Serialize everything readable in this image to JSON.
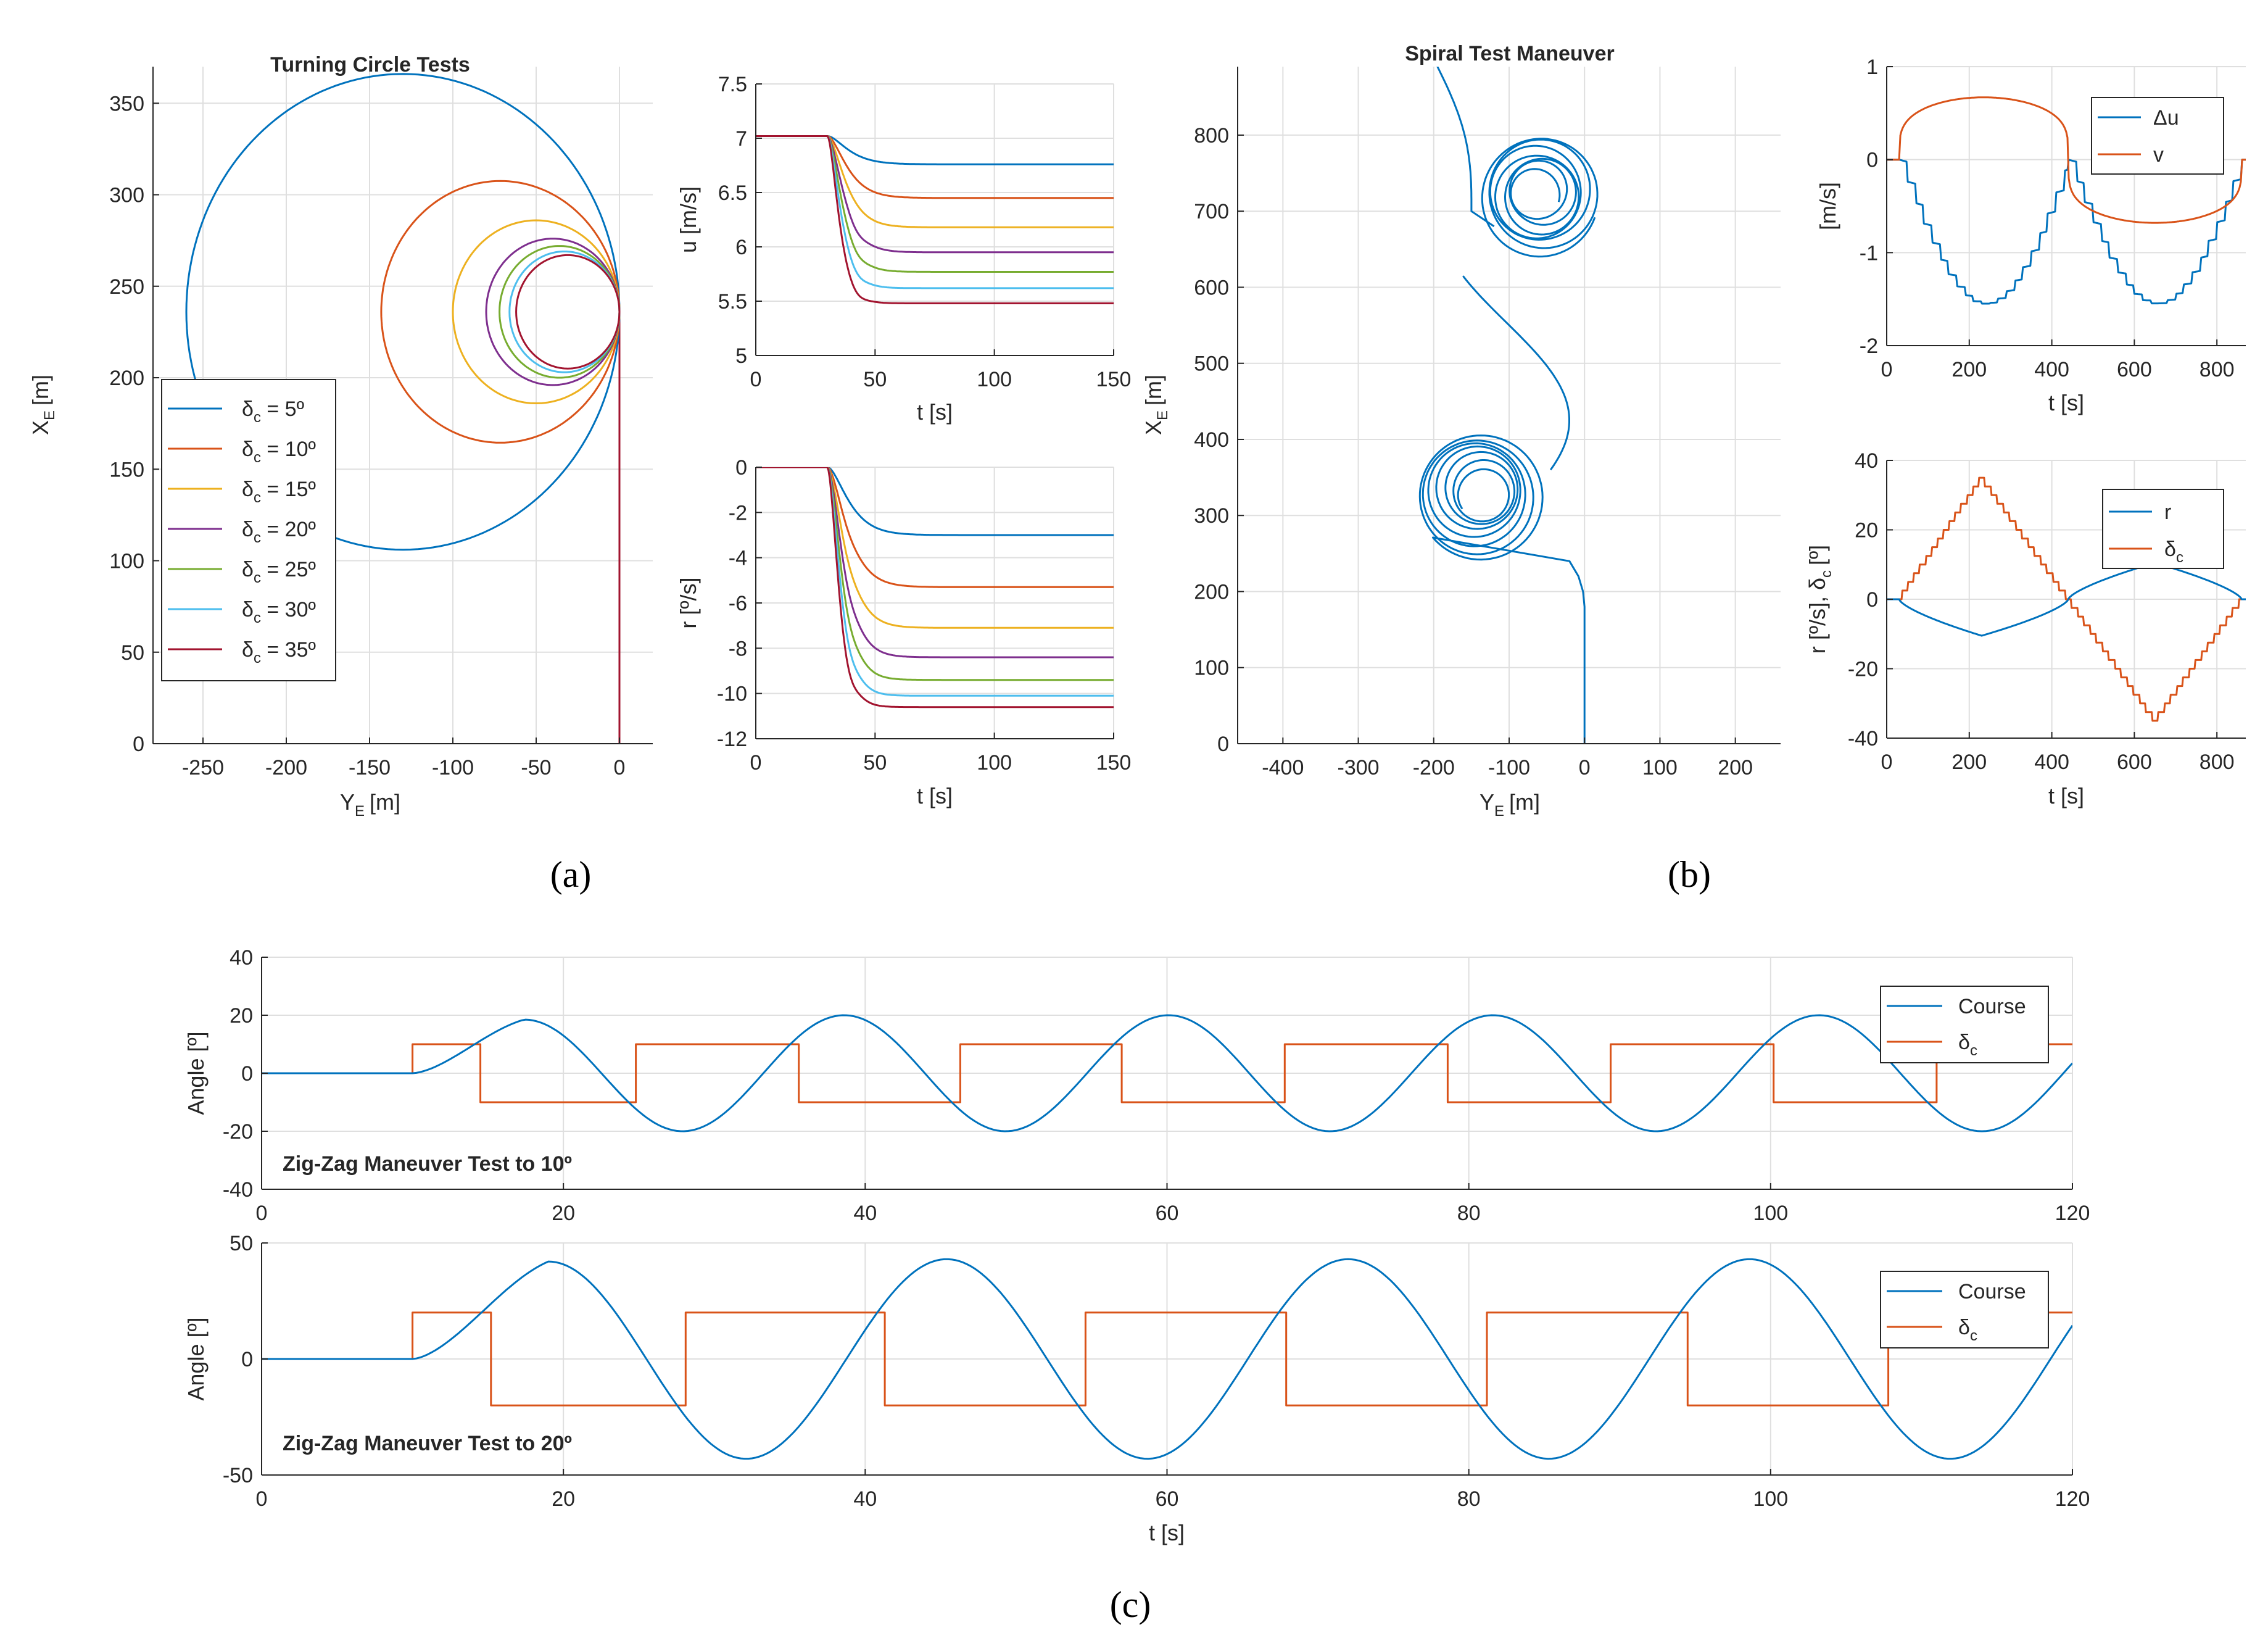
{
  "colors": {
    "blue": "#0072BD",
    "orange": "#D95319",
    "yellow": "#EDB120",
    "purple": "#7E2F8E",
    "green": "#77AC30",
    "cyan": "#4DBEEE",
    "darkred": "#A2142F"
  },
  "captions": {
    "a": "(a)",
    "b": "(b)",
    "c": "(c)"
  },
  "chart_data": [
    {
      "id": "turning",
      "type": "line",
      "title": "Turning Circle Tests",
      "xlabel": "Y",
      "xlabel_sub": "E",
      "xlabel_unit": "[m]",
      "ylabel": "X",
      "ylabel_sub": "E",
      "ylabel_unit": "[m]",
      "xlim": [
        -280,
        20
      ],
      "ylim": [
        0,
        370
      ],
      "xticks": [
        "-250",
        "-200",
        "-150",
        "-100",
        "-50",
        "0"
      ],
      "xtick_values": [
        -250,
        -200,
        -150,
        -100,
        -50,
        0
      ],
      "yticks": [
        "0",
        "50",
        "100",
        "150",
        "200",
        "250",
        "300",
        "350"
      ],
      "ytick_values": [
        0,
        50,
        100,
        150,
        200,
        250,
        300,
        350
      ],
      "series": [
        {
          "name": "δc = 5º",
          "label_main": "δ",
          "label_sub": "c",
          "label_rest": " = 5º",
          "diameter": 260,
          "color": "blue"
        },
        {
          "name": "δc = 10º",
          "label_main": "δ",
          "label_sub": "c",
          "label_rest": " = 10º",
          "diameter": 143,
          "color": "orange"
        },
        {
          "name": "δc = 15º",
          "label_main": "δ",
          "label_sub": "c",
          "label_rest": " = 15º",
          "diameter": 100,
          "color": "yellow"
        },
        {
          "name": "δc = 20º",
          "label_main": "δ",
          "label_sub": "c",
          "label_rest": " = 20º",
          "diameter": 80,
          "color": "purple"
        },
        {
          "name": "δc = 25º",
          "label_main": "δ",
          "label_sub": "c",
          "label_rest": " = 25º",
          "diameter": 72,
          "color": "green"
        },
        {
          "name": "δc = 30º",
          "label_main": "δ",
          "label_sub": "c",
          "label_rest": " = 30º",
          "diameter": 66,
          "color": "cyan"
        },
        {
          "name": "δc = 35º",
          "label_main": "δ",
          "label_sub": "c",
          "label_rest": " = 35º",
          "diameter": 62,
          "color": "darkred"
        }
      ],
      "center_x_of_start": 236
    },
    {
      "id": "u_speed",
      "type": "line",
      "xlabel": "t [s]",
      "ylabel": "u [m/s]",
      "xlim": [
        0,
        150
      ],
      "ylim": [
        5,
        7.5
      ],
      "xticks": [
        "0",
        "50",
        "100",
        "150"
      ],
      "xtick_values": [
        0,
        50,
        100,
        150
      ],
      "yticks": [
        "5",
        "5.5",
        "6",
        "6.5",
        "7",
        "7.5"
      ],
      "ytick_values": [
        5,
        5.5,
        6,
        6.5,
        7,
        7.5
      ],
      "start_value": 7.02,
      "step_time": 30,
      "final_values": [
        6.76,
        6.45,
        6.18,
        5.95,
        5.77,
        5.62,
        5.48
      ],
      "colors": [
        "blue",
        "orange",
        "yellow",
        "purple",
        "green",
        "cyan",
        "darkred"
      ]
    },
    {
      "id": "r_rate",
      "type": "line",
      "xlabel": "t [s]",
      "ylabel": "r [º/s]",
      "xlim": [
        0,
        150
      ],
      "ylim": [
        -12,
        0
      ],
      "xticks": [
        "0",
        "50",
        "100",
        "150"
      ],
      "xtick_values": [
        0,
        50,
        100,
        150
      ],
      "yticks": [
        "-12",
        "-10",
        "-8",
        "-6",
        "-4",
        "-2",
        "0"
      ],
      "ytick_values": [
        -12,
        -10,
        -8,
        -6,
        -4,
        -2,
        0
      ],
      "step_time": 30,
      "final_values": [
        -3.0,
        -5.3,
        -7.1,
        -8.4,
        -9.4,
        -10.1,
        -10.6
      ],
      "colors": [
        "blue",
        "orange",
        "yellow",
        "purple",
        "green",
        "cyan",
        "darkred"
      ]
    },
    {
      "id": "spiral",
      "type": "line",
      "title": "Spiral Test Maneuver",
      "xlabel": "Y",
      "xlabel_sub": "E",
      "xlabel_unit": "[m]",
      "ylabel": "X",
      "ylabel_sub": "E",
      "ylabel_unit": "[m]",
      "xlim": [
        -460,
        260
      ],
      "ylim": [
        0,
        890
      ],
      "xticks": [
        "-400",
        "-300",
        "-200",
        "-100",
        "0",
        "100",
        "200"
      ],
      "xtick_values": [
        -400,
        -300,
        -200,
        -100,
        0,
        100,
        200
      ],
      "yticks": [
        "0",
        "100",
        "200",
        "300",
        "400",
        "500",
        "600",
        "700",
        "800"
      ],
      "ytick_values": [
        0,
        100,
        200,
        300,
        400,
        500,
        600,
        700,
        800
      ],
      "lower_spiral_center": [
        -140,
        330
      ],
      "upper_spiral_center": [
        -60,
        723
      ],
      "color": "blue"
    },
    {
      "id": "du_v",
      "type": "line",
      "xlabel": "t [s]",
      "ylabel": "[m/s]",
      "xlim": [
        0,
        870
      ],
      "ylim": [
        -2,
        1
      ],
      "xticks": [
        "0",
        "200",
        "400",
        "600",
        "800"
      ],
      "xtick_values": [
        0,
        200,
        400,
        600,
        800
      ],
      "yticks": [
        "-2",
        "-1",
        "0",
        "1"
      ],
      "ytick_values": [
        -2,
        -1,
        0,
        1
      ],
      "series": [
        {
          "name": "Δu",
          "color": "blue",
          "peak": -1.55,
          "peak_times": [
            230,
            650
          ]
        },
        {
          "name": "v",
          "color": "orange",
          "peak": 0.67,
          "trough": -0.68
        }
      ],
      "start_time": 30,
      "cross_time": 440,
      "end_time": 860
    },
    {
      "id": "r_delta",
      "type": "line",
      "xlabel": "t [s]",
      "ylabel": "r [º/s], δ",
      "ylabel_sub": "c",
      "ylabel_unit": "[º]",
      "xlim": [
        0,
        870
      ],
      "ylim": [
        -40,
        40
      ],
      "xticks": [
        "0",
        "200",
        "400",
        "600",
        "800"
      ],
      "xtick_values": [
        0,
        200,
        400,
        600,
        800
      ],
      "yticks": [
        "-40",
        "-20",
        "0",
        "20",
        "40"
      ],
      "ytick_values": [
        -40,
        -20,
        0,
        20,
        40
      ],
      "series": [
        {
          "name": "r",
          "color": "blue",
          "min": -10.5,
          "max": 10.5
        },
        {
          "name": "δc",
          "label_main": "δ",
          "label_sub": "c",
          "color": "orange",
          "max": 35,
          "min": -35,
          "step": 2.5
        }
      ],
      "start_time": 30,
      "peak_time": 230,
      "cross_time": 440,
      "trough_time": 650,
      "end_time": 860
    },
    {
      "id": "zigzag10",
      "type": "line",
      "annotation": "Zig-Zag Maneuver Test to 10º",
      "ylabel": "Angle [º]",
      "xlim": [
        0,
        120
      ],
      "ylim": [
        -40,
        40
      ],
      "xticks": [
        "0",
        "20",
        "40",
        "60",
        "80",
        "100",
        "120"
      ],
      "xtick_values": [
        0,
        20,
        40,
        60,
        80,
        100,
        120
      ],
      "yticks": [
        "-40",
        "-20",
        "0",
        "20",
        "40"
      ],
      "ytick_values": [
        -40,
        -20,
        0,
        20,
        40
      ],
      "amplitude": 10,
      "switch_times": [
        10,
        14.5,
        24.8,
        35.6,
        46.3,
        57.0,
        67.8,
        78.6,
        89.4,
        100.2,
        111.0
      ],
      "course_peaks": [
        [
          17.4,
          18.5
        ],
        [
          27.9,
          -20
        ],
        [
          38.6,
          20
        ],
        [
          49.3,
          -20
        ],
        [
          60.1,
          20
        ],
        [
          70.8,
          -20
        ],
        [
          81.6,
          20
        ],
        [
          92.4,
          -20
        ],
        [
          103.2,
          20
        ],
        [
          114.0,
          -20
        ]
      ],
      "series": [
        {
          "name": "Course",
          "color": "blue"
        },
        {
          "name": "δc",
          "label_main": "δ",
          "label_sub": "c",
          "color": "orange"
        }
      ]
    },
    {
      "id": "zigzag20",
      "type": "line",
      "annotation": "Zig-Zag Maneuver Test to 20º",
      "xlabel": "t [s]",
      "ylabel": "Angle [º]",
      "xlim": [
        0,
        120
      ],
      "ylim": [
        -50,
        50
      ],
      "xticks": [
        "0",
        "20",
        "40",
        "60",
        "80",
        "100",
        "120"
      ],
      "xtick_values": [
        0,
        20,
        40,
        60,
        80,
        100,
        120
      ],
      "yticks": [
        "-50",
        "0",
        "50"
      ],
      "ytick_values": [
        -50,
        0,
        50
      ],
      "amplitude": 20,
      "switch_times": [
        10,
        15.2,
        28.1,
        41.3,
        54.6,
        67.9,
        81.2,
        94.5,
        107.8
      ],
      "course_peaks": [
        [
          19,
          42
        ],
        [
          32.1,
          -43
        ],
        [
          45.4,
          43
        ],
        [
          58.7,
          -43
        ],
        [
          72.0,
          43
        ],
        [
          85.3,
          -43
        ],
        [
          98.6,
          43
        ],
        [
          111.9,
          -43
        ]
      ],
      "series": [
        {
          "name": "Course",
          "color": "blue"
        },
        {
          "name": "δc",
          "label_main": "δ",
          "label_sub": "c",
          "color": "orange"
        }
      ]
    }
  ]
}
